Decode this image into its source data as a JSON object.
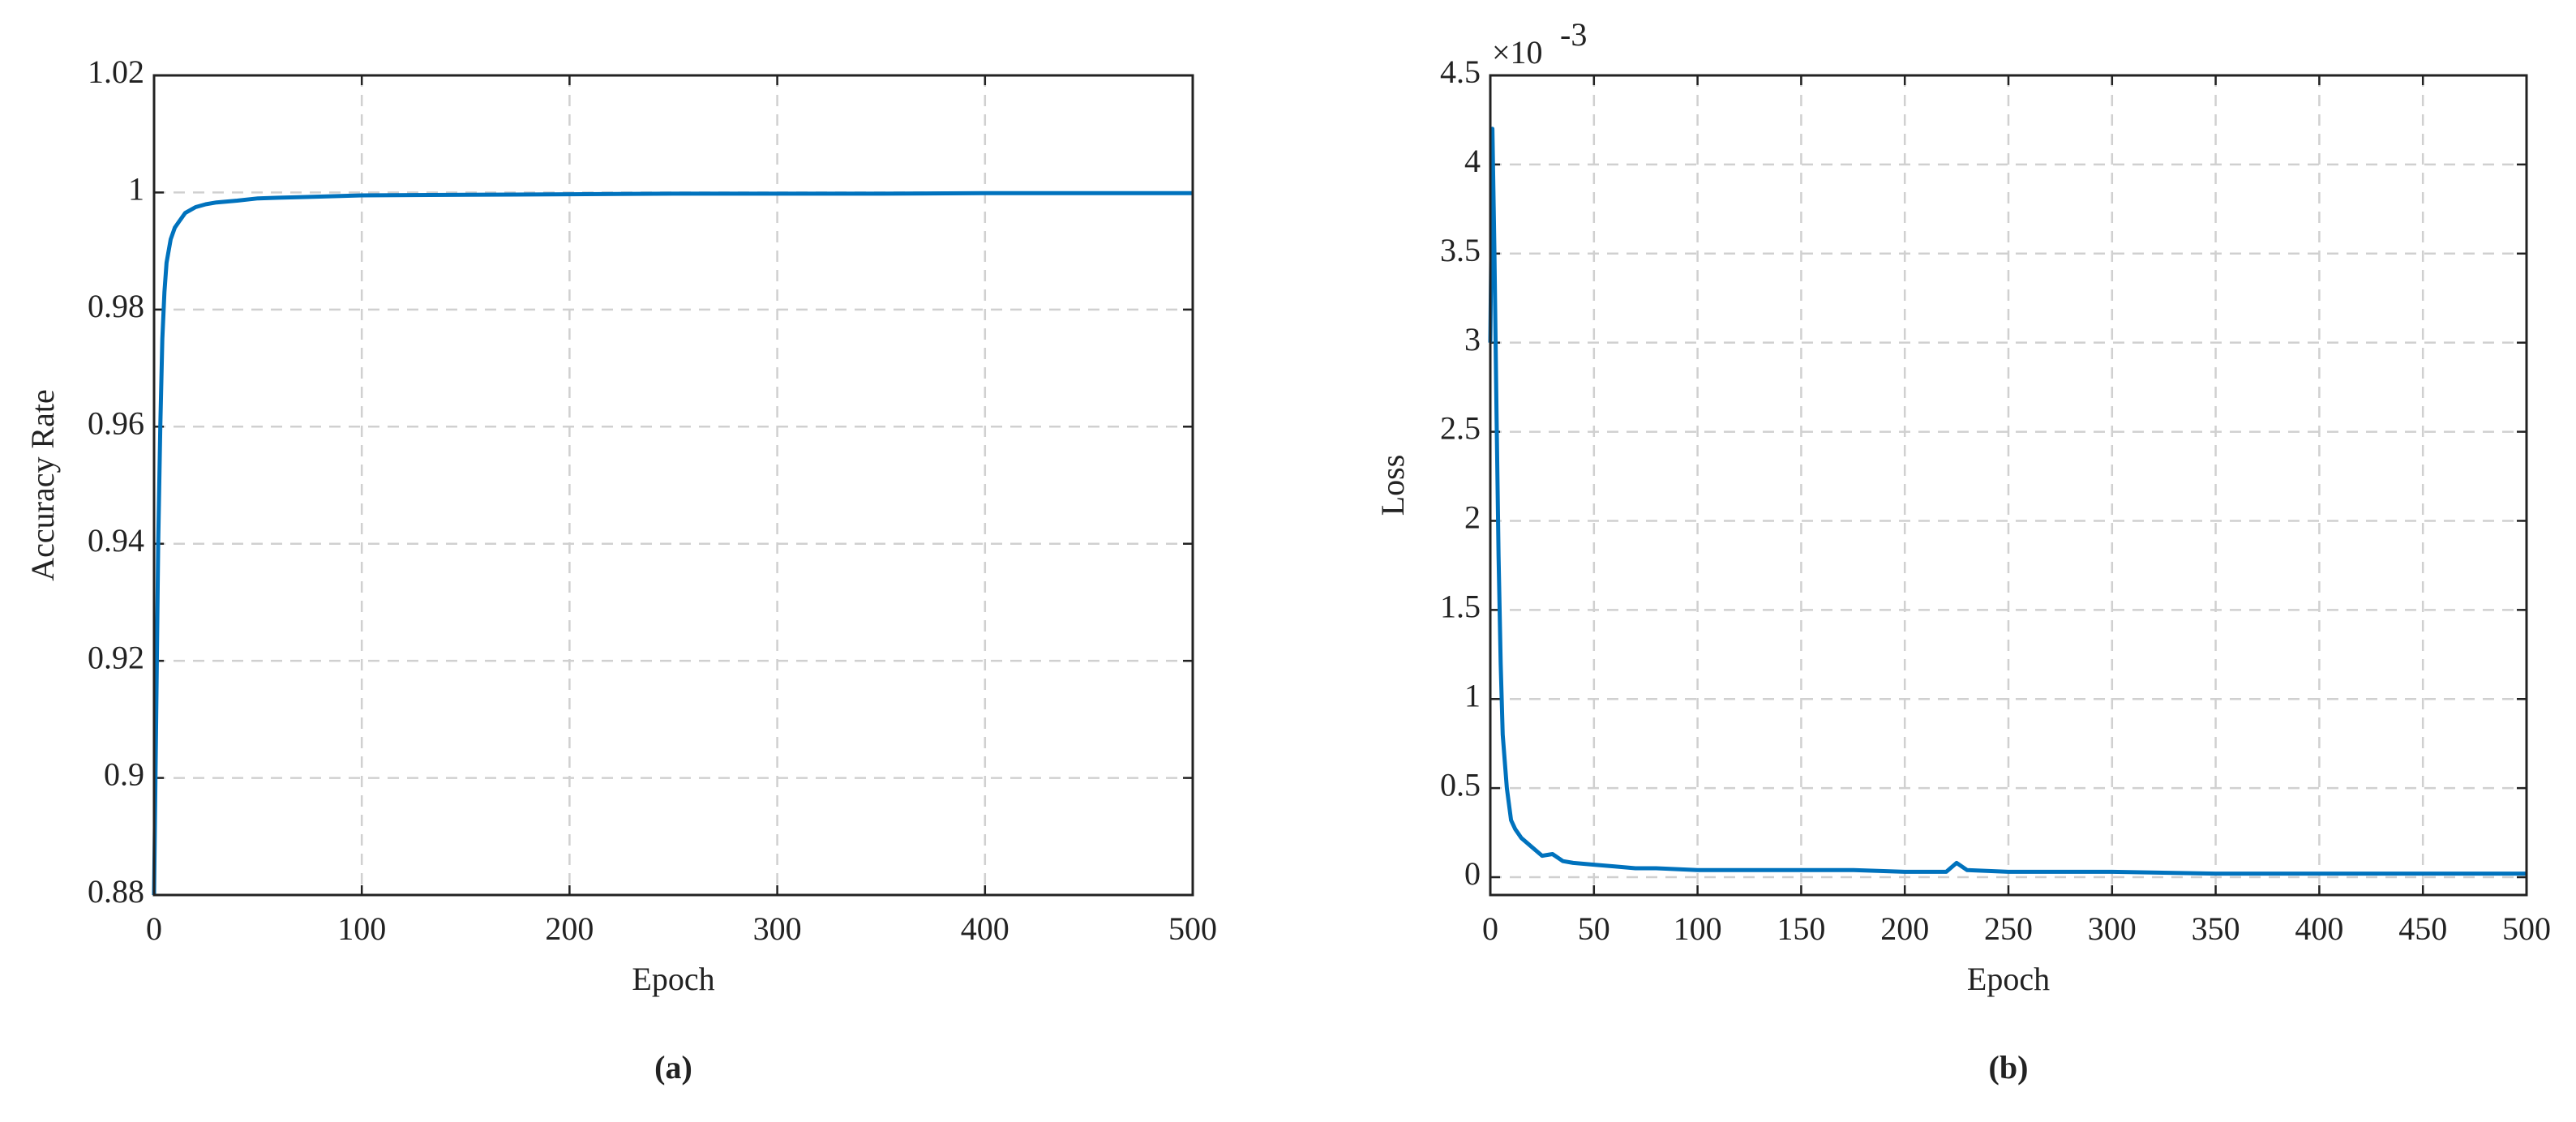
{
  "chart_data": [
    {
      "type": "line",
      "caption": "(a)",
      "xlabel": "Epoch",
      "ylabel": "Accuracy Rate",
      "xlim": [
        0,
        500
      ],
      "xticks": [
        0,
        100,
        200,
        300,
        400,
        500
      ],
      "ylim": [
        0.88,
        1.02
      ],
      "yticks": [
        0.88,
        0.9,
        0.92,
        0.94,
        0.96,
        0.98,
        1,
        1.02
      ],
      "grid": true,
      "color": "#0072bd",
      "x": [
        0,
        1,
        2,
        3,
        4,
        5,
        6,
        8,
        10,
        12,
        15,
        20,
        25,
        30,
        40,
        50,
        60,
        80,
        100,
        150,
        200,
        250,
        300,
        350,
        400,
        450,
        500
      ],
      "values": [
        0.88,
        0.91,
        0.94,
        0.96,
        0.975,
        0.983,
        0.988,
        0.992,
        0.994,
        0.995,
        0.9965,
        0.9975,
        0.998,
        0.9983,
        0.9986,
        0.999,
        0.9991,
        0.9993,
        0.9995,
        0.9996,
        0.9997,
        0.9998,
        0.9998,
        0.9998,
        0.9999,
        0.9999,
        0.9999
      ]
    },
    {
      "type": "line",
      "caption": "(b)",
      "xlabel": "Epoch",
      "ylabel": "Loss",
      "y_multiplier": "×10",
      "y_exponent": "-3",
      "xlim": [
        0,
        500
      ],
      "xticks": [
        0,
        50,
        100,
        150,
        200,
        250,
        300,
        350,
        400,
        450,
        500
      ],
      "ylim": [
        -0.1,
        4.5
      ],
      "yticks": [
        0,
        0.5,
        1,
        1.5,
        2,
        2.5,
        3,
        3.5,
        4,
        4.5
      ],
      "grid": true,
      "color": "#0072bd",
      "x": [
        0,
        1,
        2,
        3,
        4,
        5,
        6,
        8,
        10,
        12,
        15,
        20,
        25,
        30,
        35,
        40,
        50,
        60,
        70,
        80,
        100,
        120,
        150,
        175,
        200,
        220,
        225,
        230,
        250,
        300,
        350,
        400,
        450,
        500
      ],
      "values": [
        3.0,
        4.2,
        3.5,
        2.6,
        1.8,
        1.2,
        0.8,
        0.5,
        0.32,
        0.27,
        0.22,
        0.17,
        0.12,
        0.13,
        0.09,
        0.08,
        0.07,
        0.06,
        0.05,
        0.05,
        0.04,
        0.04,
        0.04,
        0.04,
        0.03,
        0.03,
        0.08,
        0.04,
        0.03,
        0.03,
        0.02,
        0.02,
        0.02,
        0.02
      ]
    }
  ]
}
